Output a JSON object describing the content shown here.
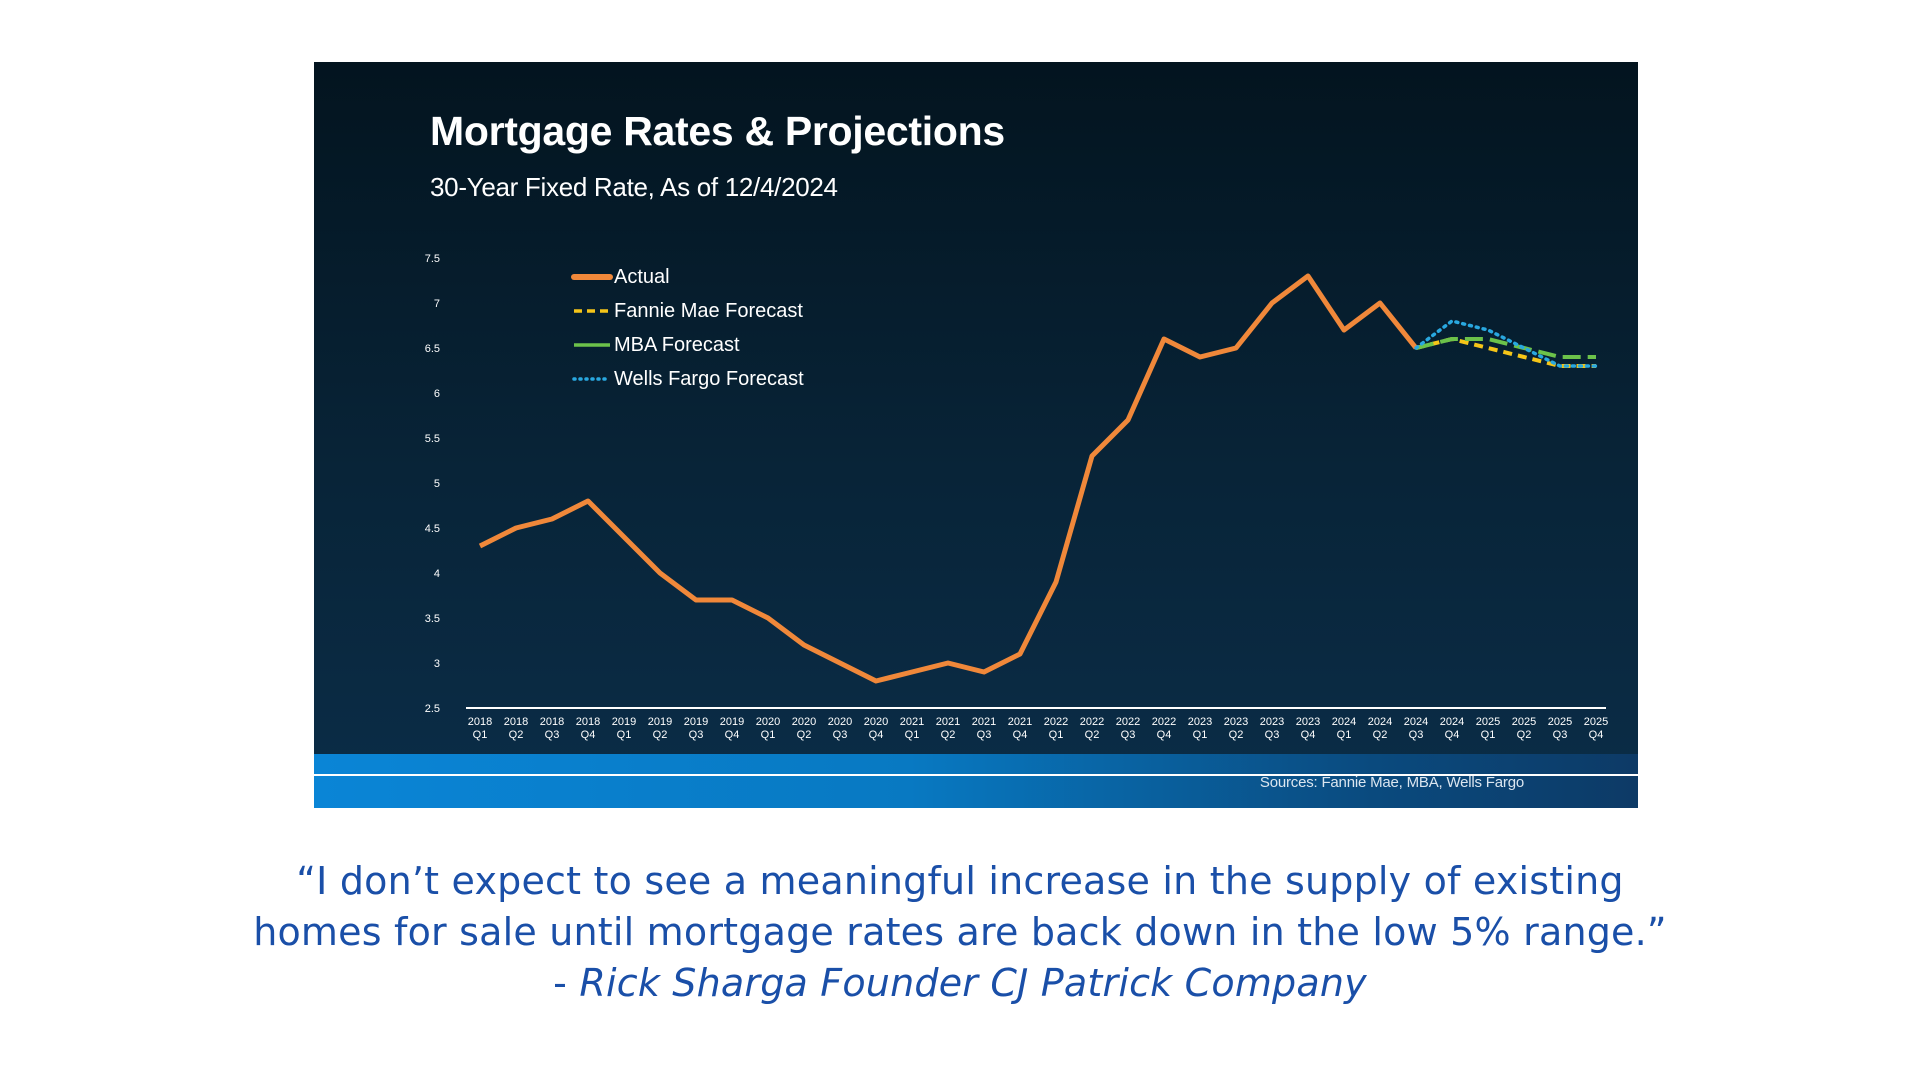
{
  "chart_data": {
    "type": "line",
    "title": "Mortgage Rates & Projections",
    "subtitle": "30-Year Fixed Rate, As of 12/4/2024",
    "xlabel": "",
    "ylabel": "",
    "ylim": [
      2.5,
      7.5
    ],
    "yticks": [
      "7.5",
      "7",
      "6.5",
      "6",
      "5.5",
      "5",
      "4.5",
      "4",
      "3.5",
      "3",
      "2.5"
    ],
    "categories": [
      [
        "2018",
        "Q1"
      ],
      [
        "2018",
        "Q2"
      ],
      [
        "2018",
        "Q3"
      ],
      [
        "2018",
        "Q4"
      ],
      [
        "2019",
        "Q1"
      ],
      [
        "2019",
        "Q2"
      ],
      [
        "2019",
        "Q3"
      ],
      [
        "2019",
        "Q4"
      ],
      [
        "2020",
        "Q1"
      ],
      [
        "2020",
        "Q2"
      ],
      [
        "2020",
        "Q3"
      ],
      [
        "2020",
        "Q4"
      ],
      [
        "2021",
        "Q1"
      ],
      [
        "2021",
        "Q2"
      ],
      [
        "2021",
        "Q3"
      ],
      [
        "2021",
        "Q4"
      ],
      [
        "2022",
        "Q1"
      ],
      [
        "2022",
        "Q2"
      ],
      [
        "2022",
        "Q3"
      ],
      [
        "2022",
        "Q4"
      ],
      [
        "2023",
        "Q1"
      ],
      [
        "2023",
        "Q2"
      ],
      [
        "2023",
        "Q3"
      ],
      [
        "2023",
        "Q4"
      ],
      [
        "2024",
        "Q1"
      ],
      [
        "2024",
        "Q2"
      ],
      [
        "2024",
        "Q3"
      ],
      [
        "2024",
        "Q4"
      ],
      [
        "2025",
        "Q1"
      ],
      [
        "2025",
        "Q2"
      ],
      [
        "2025",
        "Q3"
      ],
      [
        "2025",
        "Q4"
      ]
    ],
    "series": [
      {
        "name": "Actual",
        "color": "#f0883a",
        "style": "solid",
        "values": [
          4.3,
          4.5,
          4.6,
          4.8,
          4.4,
          4.0,
          3.7,
          3.7,
          3.5,
          3.2,
          3.0,
          2.8,
          2.9,
          3.0,
          2.9,
          3.1,
          3.9,
          5.3,
          5.7,
          6.6,
          6.4,
          6.5,
          7.0,
          7.3,
          6.7,
          7.0,
          6.5,
          null,
          null,
          null,
          null,
          null
        ]
      },
      {
        "name": "Fannie Mae Forecast",
        "color": "#f5c518",
        "style": "dashed",
        "values": [
          null,
          null,
          null,
          null,
          null,
          null,
          null,
          null,
          null,
          null,
          null,
          null,
          null,
          null,
          null,
          null,
          null,
          null,
          null,
          null,
          null,
          null,
          null,
          null,
          null,
          null,
          6.5,
          6.6,
          6.5,
          6.4,
          6.3,
          6.3
        ]
      },
      {
        "name": "MBA Forecast",
        "color": "#6cc24a",
        "style": "long-dash",
        "values": [
          null,
          null,
          null,
          null,
          null,
          null,
          null,
          null,
          null,
          null,
          null,
          null,
          null,
          null,
          null,
          null,
          null,
          null,
          null,
          null,
          null,
          null,
          null,
          null,
          null,
          null,
          6.5,
          6.6,
          6.6,
          6.5,
          6.4,
          6.4
        ]
      },
      {
        "name": "Wells Fargo Forecast",
        "color": "#29a8e0",
        "style": "dotted",
        "values": [
          null,
          null,
          null,
          null,
          null,
          null,
          null,
          null,
          null,
          null,
          null,
          null,
          null,
          null,
          null,
          null,
          null,
          null,
          null,
          null,
          null,
          null,
          null,
          null,
          null,
          null,
          6.5,
          6.8,
          6.7,
          6.5,
          6.3,
          6.3
        ]
      }
    ],
    "legend_position": "top-left",
    "grid": false,
    "sources": "Sources: Fannie Mae, MBA, Wells Fargo"
  },
  "quote": {
    "line1": "“I don’t expect to see a meaningful increase in the supply of existing",
    "line2": "homes for sale until mortgage rates are back down in the low 5% range.”",
    "attribution_prefix": "- ",
    "attribution": "Rick Sharga Founder CJ Patrick Company"
  },
  "colors": {
    "quote_text": "#1a4fa8",
    "slide_background": "#061d2e",
    "footer_band": "#0a85d6"
  }
}
